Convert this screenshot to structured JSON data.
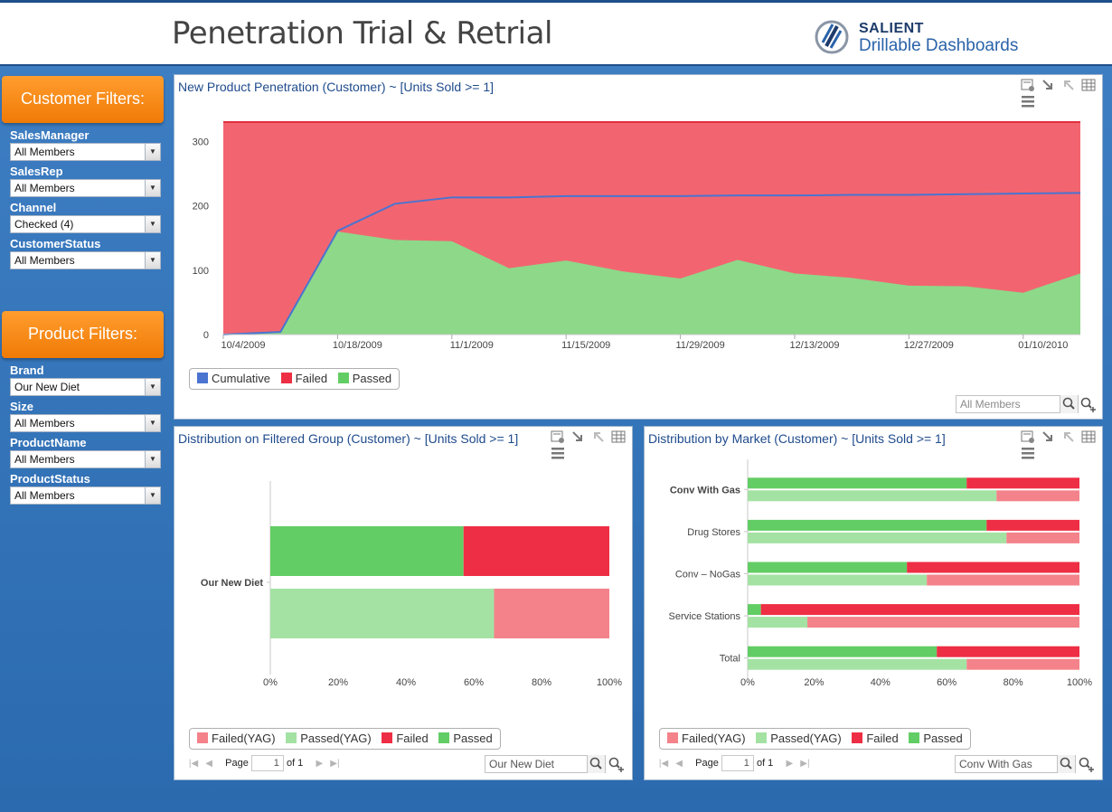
{
  "header": {
    "title": "Penetration Trial & Retrial",
    "brand_top": "SALIENT",
    "brand_bottom": "Drillable Dashboards"
  },
  "customer_filters": {
    "heading": "Customer Filters:",
    "fields": [
      {
        "label": "SalesManager",
        "value": "All Members"
      },
      {
        "label": "SalesRep",
        "value": "All Members"
      },
      {
        "label": "Channel",
        "value": "Checked (4)"
      },
      {
        "label": "CustomerStatus",
        "value": "All Members"
      }
    ]
  },
  "product_filters": {
    "heading": "Product Filters:",
    "fields": [
      {
        "label": "Brand",
        "value": "Our New Diet"
      },
      {
        "label": "Size",
        "value": "All Members"
      },
      {
        "label": "ProductName",
        "value": "All Members"
      },
      {
        "label": "ProductStatus",
        "value": "All Members"
      }
    ]
  },
  "panels": {
    "penetration": {
      "title": "New Product Penetration (Customer) ~ [Units Sold >= 1]",
      "legend": [
        "Cumulative",
        "Failed",
        "Passed"
      ],
      "search_placeholder": "All Members"
    },
    "distribution": {
      "title": "Distribution on Filtered Group (Customer) ~ [Units Sold >= 1]",
      "legend": [
        "Failed(YAG)",
        "Passed(YAG)",
        "Failed",
        "Passed"
      ],
      "search_value": "Our New Diet",
      "pager": {
        "page_label": "Page",
        "page": "1",
        "of_label": "of 1"
      }
    },
    "market": {
      "title": "Distribution by Market (Customer) ~ [Units Sold >= 1]",
      "legend": [
        "Failed(YAG)",
        "Passed(YAG)",
        "Failed",
        "Passed"
      ],
      "search_value": "Conv With Gas",
      "pager": {
        "page_label": "Page",
        "page": "1",
        "of_label": "of 1"
      }
    }
  },
  "colors": {
    "cumulative": "#4a74d0",
    "failed_area": "#f26570",
    "passed_area": "#8dd889",
    "failed": "#ee2e44",
    "passed": "#62cd64",
    "failed_yag": "#f4828a",
    "passed_yag": "#a4e2a3"
  },
  "chart_data": [
    {
      "type": "area",
      "title": "New Product Penetration (Customer) ~ [Units Sold >= 1]",
      "x": [
        "10/4/2009",
        "10/11/2009",
        "10/18/2009",
        "10/25/2009",
        "11/1/2009",
        "11/8/2009",
        "11/15/2009",
        "11/22/2009",
        "11/29/2009",
        "12/6/2009",
        "12/13/2009",
        "12/20/2009",
        "12/27/2009",
        "01/03/2010",
        "01/10/2010",
        "01/17/2010"
      ],
      "x_tick_labels": [
        "10/4/2009",
        "10/18/2009",
        "11/1/2009",
        "11/15/2009",
        "11/29/2009",
        "12/13/2009",
        "12/27/2009",
        "01/10/2010"
      ],
      "ylim": [
        0,
        330
      ],
      "y_ticks": [
        0,
        100,
        200,
        300
      ],
      "series": [
        {
          "name": "Failed",
          "values": [
            330,
            330,
            330,
            330,
            330,
            330,
            330,
            330,
            330,
            330,
            330,
            330,
            330,
            330,
            330,
            330
          ]
        },
        {
          "name": "Passed",
          "values": [
            0,
            3,
            160,
            147,
            145,
            103,
            115,
            98,
            87,
            116,
            95,
            88,
            76,
            75,
            65,
            95
          ]
        },
        {
          "name": "Cumulative",
          "values": [
            0,
            4,
            161,
            203,
            213,
            213,
            215,
            215,
            215,
            216,
            216,
            217,
            217,
            218,
            219,
            220
          ]
        }
      ],
      "legend": "bottom-left",
      "grid": false
    },
    {
      "type": "bar",
      "orientation": "horizontal",
      "stacked_percent": true,
      "title": "Distribution on Filtered Group (Customer) ~ [Units Sold >= 1]",
      "categories": [
        "Our New Diet"
      ],
      "x_ticks": [
        "0%",
        "20%",
        "40%",
        "60%",
        "80%",
        "100%"
      ],
      "series": [
        {
          "name": "Passed",
          "values": [
            57
          ]
        },
        {
          "name": "Failed",
          "values": [
            43
          ]
        },
        {
          "name": "Passed(YAG)",
          "values": [
            66
          ]
        },
        {
          "name": "Failed(YAG)",
          "values": [
            34
          ]
        }
      ],
      "legend": "bottom-left"
    },
    {
      "type": "bar",
      "orientation": "horizontal",
      "stacked_percent": true,
      "title": "Distribution by Market (Customer) ~ [Units Sold >= 1]",
      "categories": [
        "Conv With Gas",
        "Drug Stores",
        "Conv – NoGas",
        "Service Stations",
        "Total"
      ],
      "x_ticks": [
        "0%",
        "20%",
        "40%",
        "60%",
        "80%",
        "100%"
      ],
      "series": [
        {
          "name": "Passed",
          "values": [
            66,
            72,
            48,
            4,
            57
          ]
        },
        {
          "name": "Failed",
          "values": [
            34,
            28,
            52,
            96,
            43
          ]
        },
        {
          "name": "Passed(YAG)",
          "values": [
            75,
            78,
            54,
            18,
            66
          ]
        },
        {
          "name": "Failed(YAG)",
          "values": [
            25,
            22,
            46,
            82,
            34
          ]
        }
      ],
      "legend": "bottom-left"
    }
  ]
}
